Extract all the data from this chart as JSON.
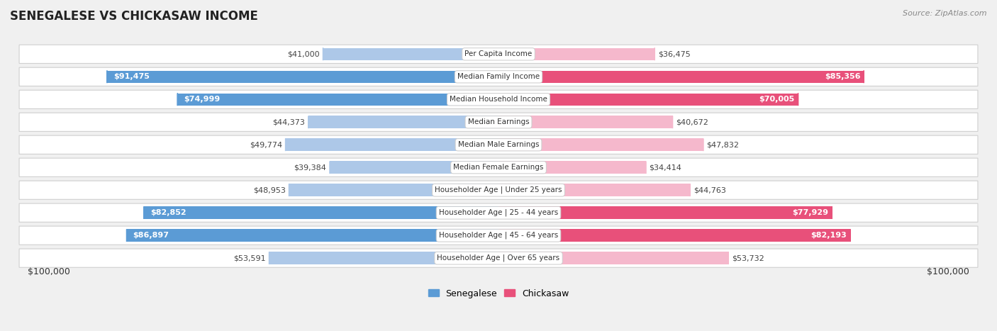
{
  "title": "SENEGALESE VS CHICKASAW INCOME",
  "source": "Source: ZipAtlas.com",
  "categories": [
    "Per Capita Income",
    "Median Family Income",
    "Median Household Income",
    "Median Earnings",
    "Median Male Earnings",
    "Median Female Earnings",
    "Householder Age | Under 25 years",
    "Householder Age | 25 - 44 years",
    "Householder Age | 45 - 64 years",
    "Householder Age | Over 65 years"
  ],
  "senegalese_values": [
    41000,
    91475,
    74999,
    44373,
    49774,
    39384,
    48953,
    82852,
    86897,
    53591
  ],
  "chickasaw_values": [
    36475,
    85356,
    70005,
    40672,
    47832,
    34414,
    44763,
    77929,
    82193,
    53732
  ],
  "senegalese_labels": [
    "$41,000",
    "$91,475",
    "$74,999",
    "$44,373",
    "$49,774",
    "$39,384",
    "$48,953",
    "$82,852",
    "$86,897",
    "$53,591"
  ],
  "chickasaw_labels": [
    "$36,475",
    "$85,356",
    "$70,005",
    "$40,672",
    "$47,832",
    "$34,414",
    "$44,763",
    "$77,929",
    "$82,193",
    "$53,732"
  ],
  "max_value": 100000,
  "senegalese_color_light": "#adc8e8",
  "senegalese_color_dark": "#5b9bd5",
  "chickasaw_color_light": "#f5b8cc",
  "chickasaw_color_dark": "#e8507a",
  "bg_color": "#f0f0f0",
  "row_bg_color": "#ffffff",
  "row_border_color": "#d0d0d0",
  "legend_senegalese": "Senegalese",
  "legend_chickasaw": "Chickasaw",
  "xlabel_left": "$100,000",
  "xlabel_right": "$100,000",
  "large_threshold": 60000,
  "label_fontsize": 8.0,
  "cat_fontsize": 7.5,
  "title_fontsize": 12,
  "source_fontsize": 8
}
